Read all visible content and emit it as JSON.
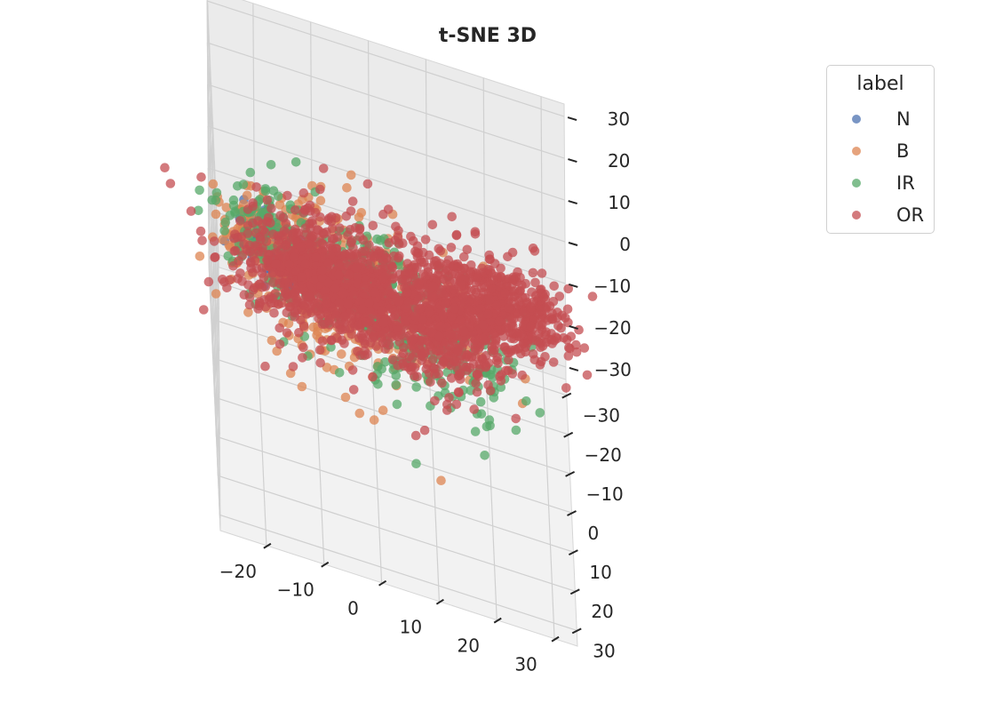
{
  "chart_data": {
    "type": "scatter",
    "projection": "3d",
    "title": "t-SNE 3D",
    "xlabel": "",
    "ylabel": "",
    "zlabel": "",
    "xlim": [
      -28,
      34
    ],
    "ylim": [
      -34,
      34
    ],
    "zlim": [
      -33,
      33
    ],
    "xticks": [
      "−20",
      "−10",
      "0",
      "10",
      "20",
      "30"
    ],
    "yticks": [
      "−30",
      "−20",
      "−10",
      "0",
      "10",
      "20",
      "30"
    ],
    "zticks": [
      "−30",
      "−20",
      "−10",
      "0",
      "10",
      "20",
      "30"
    ],
    "grid": true,
    "legend": {
      "title": "label",
      "placement": "top-right",
      "entries": [
        {
          "name": "N",
          "color": "#4c72b0"
        },
        {
          "name": "B",
          "color": "#dd8452"
        },
        {
          "name": "IR",
          "color": "#55a868"
        },
        {
          "name": "OR",
          "color": "#c44e52"
        }
      ]
    },
    "series": [
      {
        "name": "N",
        "color": "#4c72b0",
        "clusters": [
          {
            "center": [
              -20,
              12,
              20
            ],
            "spread": [
              2.5,
              2.5,
              3
            ],
            "count": 90
          },
          {
            "center": [
              -16,
              24,
              25
            ],
            "spread": [
              1.5,
              1.5,
              2
            ],
            "count": 25
          }
        ]
      },
      {
        "name": "B",
        "color": "#dd8452",
        "clusters": [
          {
            "center": [
              -10,
              -20,
              -12
            ],
            "spread": [
              7,
              6,
              6
            ],
            "count": 200
          },
          {
            "center": [
              -22,
              6,
              14
            ],
            "spread": [
              3,
              4,
              4
            ],
            "count": 70
          },
          {
            "center": [
              -8,
              18,
              10
            ],
            "spread": [
              5,
              5,
              5
            ],
            "count": 70
          },
          {
            "center": [
              6,
              0,
              0
            ],
            "spread": [
              9,
              9,
              8
            ],
            "count": 80
          }
        ]
      },
      {
        "name": "IR",
        "color": "#55a868",
        "clusters": [
          {
            "center": [
              -18,
              0,
              10
            ],
            "spread": [
              5,
              5,
              5
            ],
            "count": 110
          },
          {
            "center": [
              -4,
              20,
              26
            ],
            "spread": [
              5,
              5,
              3
            ],
            "count": 120
          },
          {
            "center": [
              14,
              8,
              4
            ],
            "spread": [
              6,
              6,
              6
            ],
            "count": 130
          },
          {
            "center": [
              2,
              -8,
              -8
            ],
            "spread": [
              8,
              8,
              6
            ],
            "count": 120
          }
        ]
      },
      {
        "name": "OR",
        "color": "#c44e52",
        "clusters": [
          {
            "center": [
              -12,
              22,
              24
            ],
            "spread": [
              3,
              3,
              3
            ],
            "count": 160
          },
          {
            "center": [
              -5,
              10,
              14
            ],
            "spread": [
              6,
              6,
              5
            ],
            "count": 280
          },
          {
            "center": [
              10,
              14,
              16
            ],
            "spread": [
              6,
              5,
              6
            ],
            "count": 260
          },
          {
            "center": [
              22,
              -2,
              10
            ],
            "spread": [
              6,
              4,
              4
            ],
            "count": 200
          },
          {
            "center": [
              20,
              -14,
              -2
            ],
            "spread": [
              5,
              4,
              4
            ],
            "count": 160
          },
          {
            "center": [
              -15,
              -10,
              -6
            ],
            "spread": [
              6,
              6,
              5
            ],
            "count": 270
          },
          {
            "center": [
              0,
              -22,
              -20
            ],
            "spread": [
              5,
              5,
              4
            ],
            "count": 200
          },
          {
            "center": [
              14,
              -24,
              -20
            ],
            "spread": [
              5,
              4,
              4
            ],
            "count": 170
          },
          {
            "center": [
              8,
              -6,
              -2
            ],
            "spread": [
              7,
              7,
              6
            ],
            "count": 220
          },
          {
            "center": [
              26,
              12,
              22
            ],
            "spread": [
              4,
              4,
              3
            ],
            "count": 120
          }
        ]
      }
    ]
  }
}
